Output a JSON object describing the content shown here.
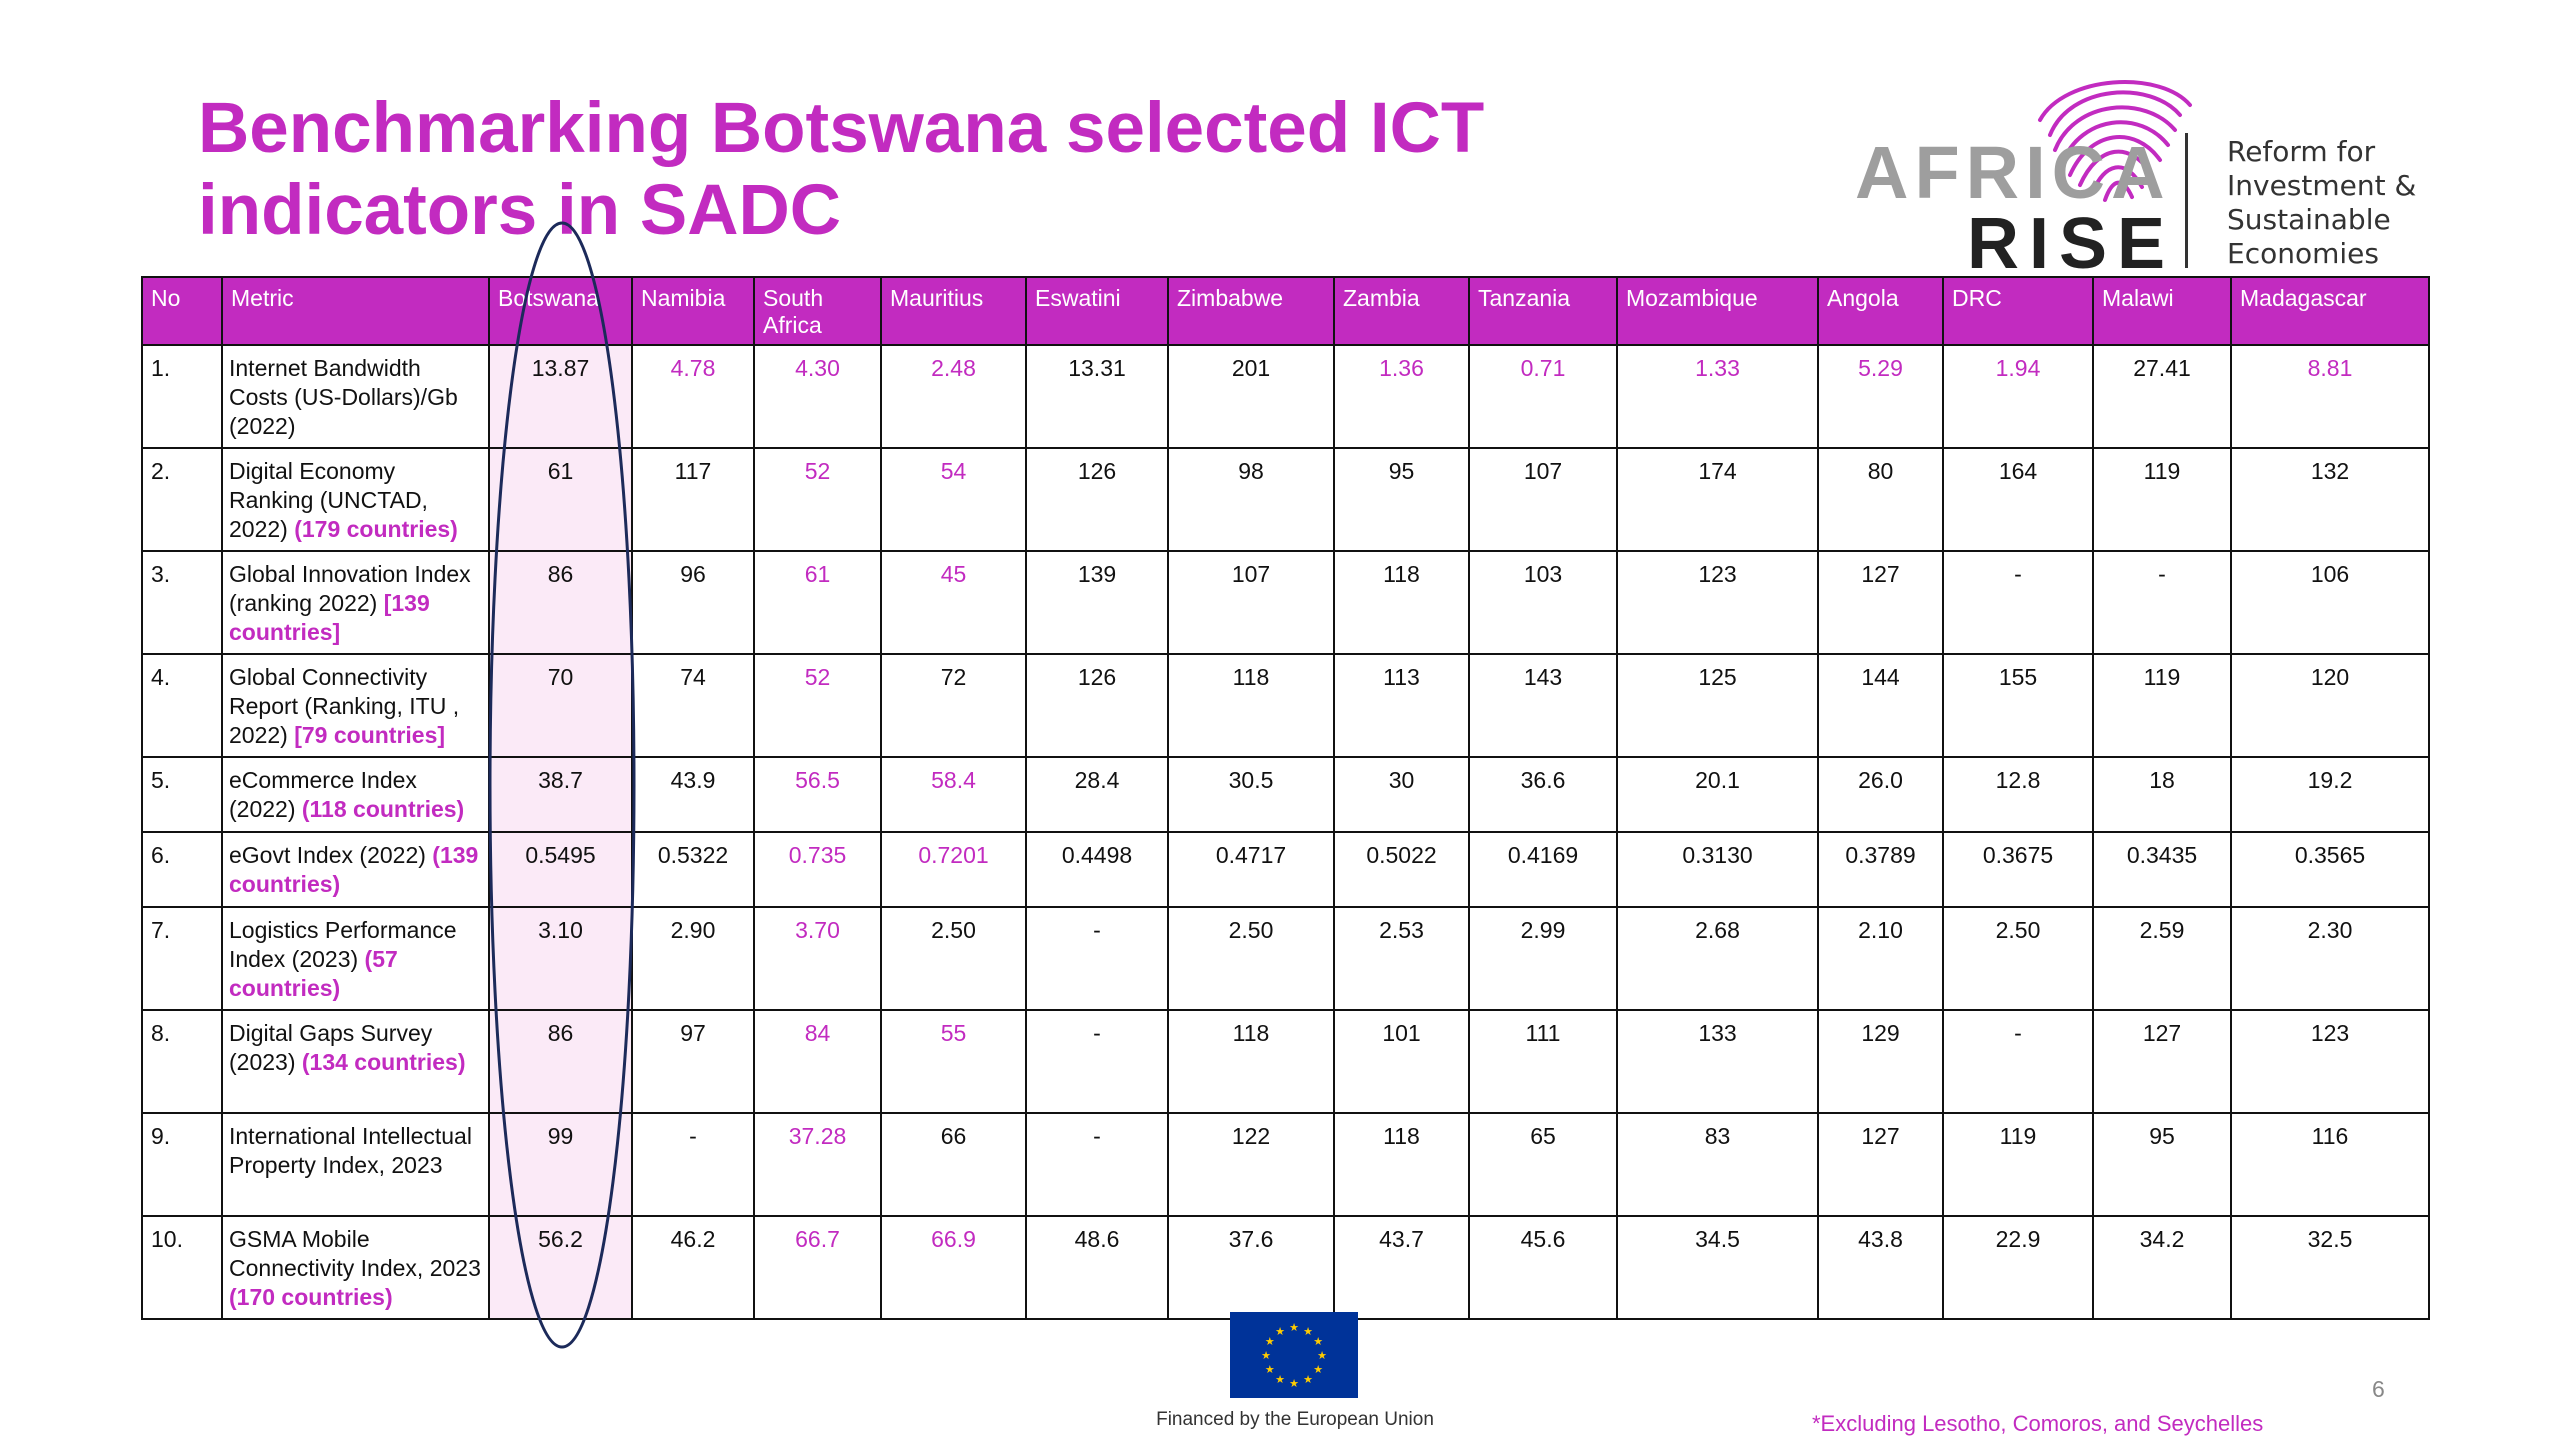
{
  "title_lines": [
    "Benchmarking Botswana selected ICT",
    "indicators in SADC"
  ],
  "logo": {
    "word1": "AFRICA",
    "word2": "RISE",
    "tagline": [
      "Reform for",
      "Investment &",
      "Sustainable",
      "Economies"
    ]
  },
  "colors": {
    "accent": "#c22bc0",
    "highlight": "#fbeaf7",
    "eu_blue": "#003399",
    "eu_gold": "#ffcc00"
  },
  "table": {
    "headers": [
      "No",
      "Metric",
      "Botswana",
      "Namibia",
      "South Africa",
      "Mauritius",
      "Eswatini",
      "Zimbabwe",
      "Zambia",
      "Tanzania",
      "Mozambique",
      "Angola",
      "DRC",
      "Malawi",
      "Madagascar"
    ],
    "rows": [
      {
        "no": "1.",
        "metric": "Internet Bandwidth Costs (US-Dollars)/Gb (2022)",
        "metric_note": "",
        "values": [
          "13.87",
          "4.78",
          "4.30",
          "2.48",
          "13.31",
          "201",
          "1.36",
          "0.71",
          "1.33",
          "5.29",
          "1.94",
          "27.41",
          "8.81"
        ],
        "pink": [
          false,
          true,
          true,
          true,
          false,
          false,
          true,
          true,
          true,
          true,
          true,
          false,
          true
        ]
      },
      {
        "no": "2.",
        "metric": "Digital Economy Ranking (UNCTAD, 2022)",
        "metric_note": "(179 countries)",
        "values": [
          "61",
          "117",
          "52",
          "54",
          "126",
          "98",
          "95",
          "107",
          "174",
          "80",
          "164",
          "119",
          "132"
        ],
        "pink": [
          false,
          false,
          true,
          true,
          false,
          false,
          false,
          false,
          false,
          false,
          false,
          false,
          false
        ]
      },
      {
        "no": "3.",
        "metric": "Global Innovation Index (ranking 2022)",
        "metric_note": "[139 countries]",
        "values": [
          "86",
          "96",
          "61",
          "45",
          "139",
          "107",
          "118",
          "103",
          "123",
          "127",
          "-",
          "-",
          "106"
        ],
        "pink": [
          false,
          false,
          true,
          true,
          false,
          false,
          false,
          false,
          false,
          false,
          false,
          false,
          false
        ]
      },
      {
        "no": "4.",
        "metric": "Global Connectivity Report (Ranking, ITU , 2022)",
        "metric_note": "[79 countries]",
        "values": [
          "70",
          "74",
          "52",
          "72",
          "126",
          "118",
          "113",
          "143",
          "125",
          "144",
          "155",
          "119",
          "120"
        ],
        "pink": [
          false,
          false,
          true,
          false,
          false,
          false,
          false,
          false,
          false,
          false,
          false,
          false,
          false
        ]
      },
      {
        "no": "5.",
        "metric": "eCommerce Index (2022)",
        "metric_note": "(118 countries)",
        "values": [
          "38.7",
          "43.9",
          "56.5",
          "58.4",
          "28.4",
          "30.5",
          "30",
          "36.6",
          "20.1",
          "26.0",
          "12.8",
          "18",
          "19.2"
        ],
        "pink": [
          false,
          false,
          true,
          true,
          false,
          false,
          false,
          false,
          false,
          false,
          false,
          false,
          false
        ]
      },
      {
        "no": "6.",
        "metric": "eGovt Index (2022)",
        "metric_note": "(139 countries)",
        "values": [
          "0.5495",
          "0.5322",
          "0.735",
          "0.7201",
          "0.4498",
          "0.4717",
          "0.5022",
          "0.4169",
          "0.3130",
          "0.3789",
          "0.3675",
          "0.3435",
          "0.3565"
        ],
        "pink": [
          false,
          false,
          true,
          true,
          false,
          false,
          false,
          false,
          false,
          false,
          false,
          false,
          false
        ]
      },
      {
        "no": "7.",
        "metric": "Logistics Performance Index (2023)",
        "metric_note": "(57 countries)",
        "values": [
          "3.10",
          "2.90",
          "3.70",
          "2.50",
          "-",
          "2.50",
          "2.53",
          "2.99",
          "2.68",
          "2.10",
          "2.50",
          "2.59",
          "2.30"
        ],
        "pink": [
          false,
          false,
          true,
          false,
          false,
          false,
          false,
          false,
          false,
          false,
          false,
          false,
          false
        ]
      },
      {
        "no": "8.",
        "metric": "Digital Gaps Survey (2023)",
        "metric_note": "(134 countries)",
        "values": [
          "86",
          "97",
          "84",
          "55",
          "-",
          "118",
          "101",
          "111",
          "133",
          "129",
          "-",
          "127",
          "123"
        ],
        "pink": [
          false,
          false,
          true,
          true,
          false,
          false,
          false,
          false,
          false,
          false,
          false,
          false,
          false
        ]
      },
      {
        "no": "9.",
        "metric": "International Intellectual Property Index, 2023",
        "metric_note": "",
        "values": [
          "99",
          "-",
          "37.28",
          "66",
          "-",
          "122",
          "118",
          "65",
          "83",
          "127",
          "119",
          "95",
          "116"
        ],
        "pink": [
          false,
          false,
          true,
          false,
          false,
          false,
          false,
          false,
          false,
          false,
          false,
          false,
          false
        ]
      },
      {
        "no": "10.",
        "metric": "GSMA Mobile Connectivity Index, 2023",
        "metric_note": "(170 countries)",
        "values": [
          "56.2",
          "46.2",
          "66.7",
          "66.9",
          "48.6",
          "37.6",
          "43.7",
          "45.6",
          "34.5",
          "43.8",
          "22.9",
          "34.2",
          "32.5"
        ],
        "pink": [
          false,
          false,
          true,
          true,
          false,
          false,
          false,
          false,
          false,
          false,
          false,
          false,
          false
        ]
      }
    ]
  },
  "footer": {
    "eu_caption": "Financed by the European Union",
    "footnote": "*Excluding Lesotho, Comoros, and Seychelles",
    "page_number": "6"
  }
}
